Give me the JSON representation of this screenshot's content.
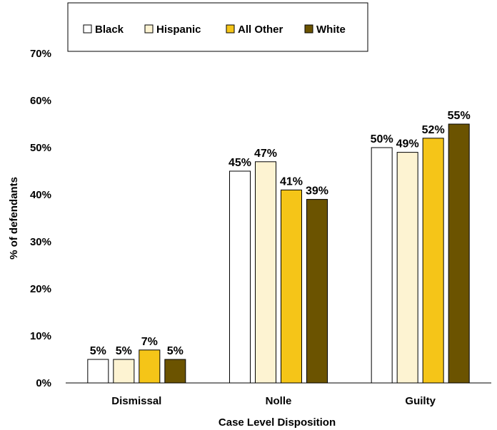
{
  "chart_data": {
    "type": "bar",
    "categories": [
      "Dismissal",
      "Nolle",
      "Guilty"
    ],
    "series": [
      {
        "name": "Black",
        "values": [
          5,
          45,
          50
        ],
        "color": "#ffffff"
      },
      {
        "name": "Hispanic",
        "values": [
          5,
          47,
          49
        ],
        "color": "#fdf3d2"
      },
      {
        "name": "All Other",
        "values": [
          7,
          41,
          52
        ],
        "color": "#f5c518"
      },
      {
        "name": "White",
        "values": [
          5,
          39,
          55
        ],
        "color": "#6b5300"
      }
    ],
    "xlabel": "Case Level Disposition",
    "ylabel": "% of defendants",
    "ylim": [
      0,
      70
    ],
    "yticks": [
      0,
      10,
      20,
      30,
      40,
      50,
      60,
      70
    ],
    "value_suffix": "%",
    "grid": false,
    "legend_position": "top"
  }
}
